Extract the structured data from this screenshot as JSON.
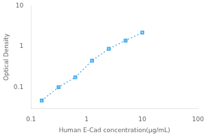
{
  "chart_data": {
    "type": "line",
    "x": [
      0.156,
      0.313,
      0.625,
      1.25,
      2.5,
      5.0,
      10.0
    ],
    "values": [
      0.047,
      0.1,
      0.175,
      0.45,
      0.88,
      1.4,
      2.2
    ],
    "xlabel": "Human E-Cad concentration(μg/mL)",
    "ylabel": "Optical Density",
    "xlim": [
      0.1,
      100
    ],
    "ylim": [
      0.03,
      10
    ],
    "xticks": [
      0.1,
      1,
      10,
      100
    ],
    "yticks": [
      0.1,
      1,
      10
    ],
    "log": true,
    "grid": false,
    "marker": "square",
    "line_style": "dotted"
  }
}
